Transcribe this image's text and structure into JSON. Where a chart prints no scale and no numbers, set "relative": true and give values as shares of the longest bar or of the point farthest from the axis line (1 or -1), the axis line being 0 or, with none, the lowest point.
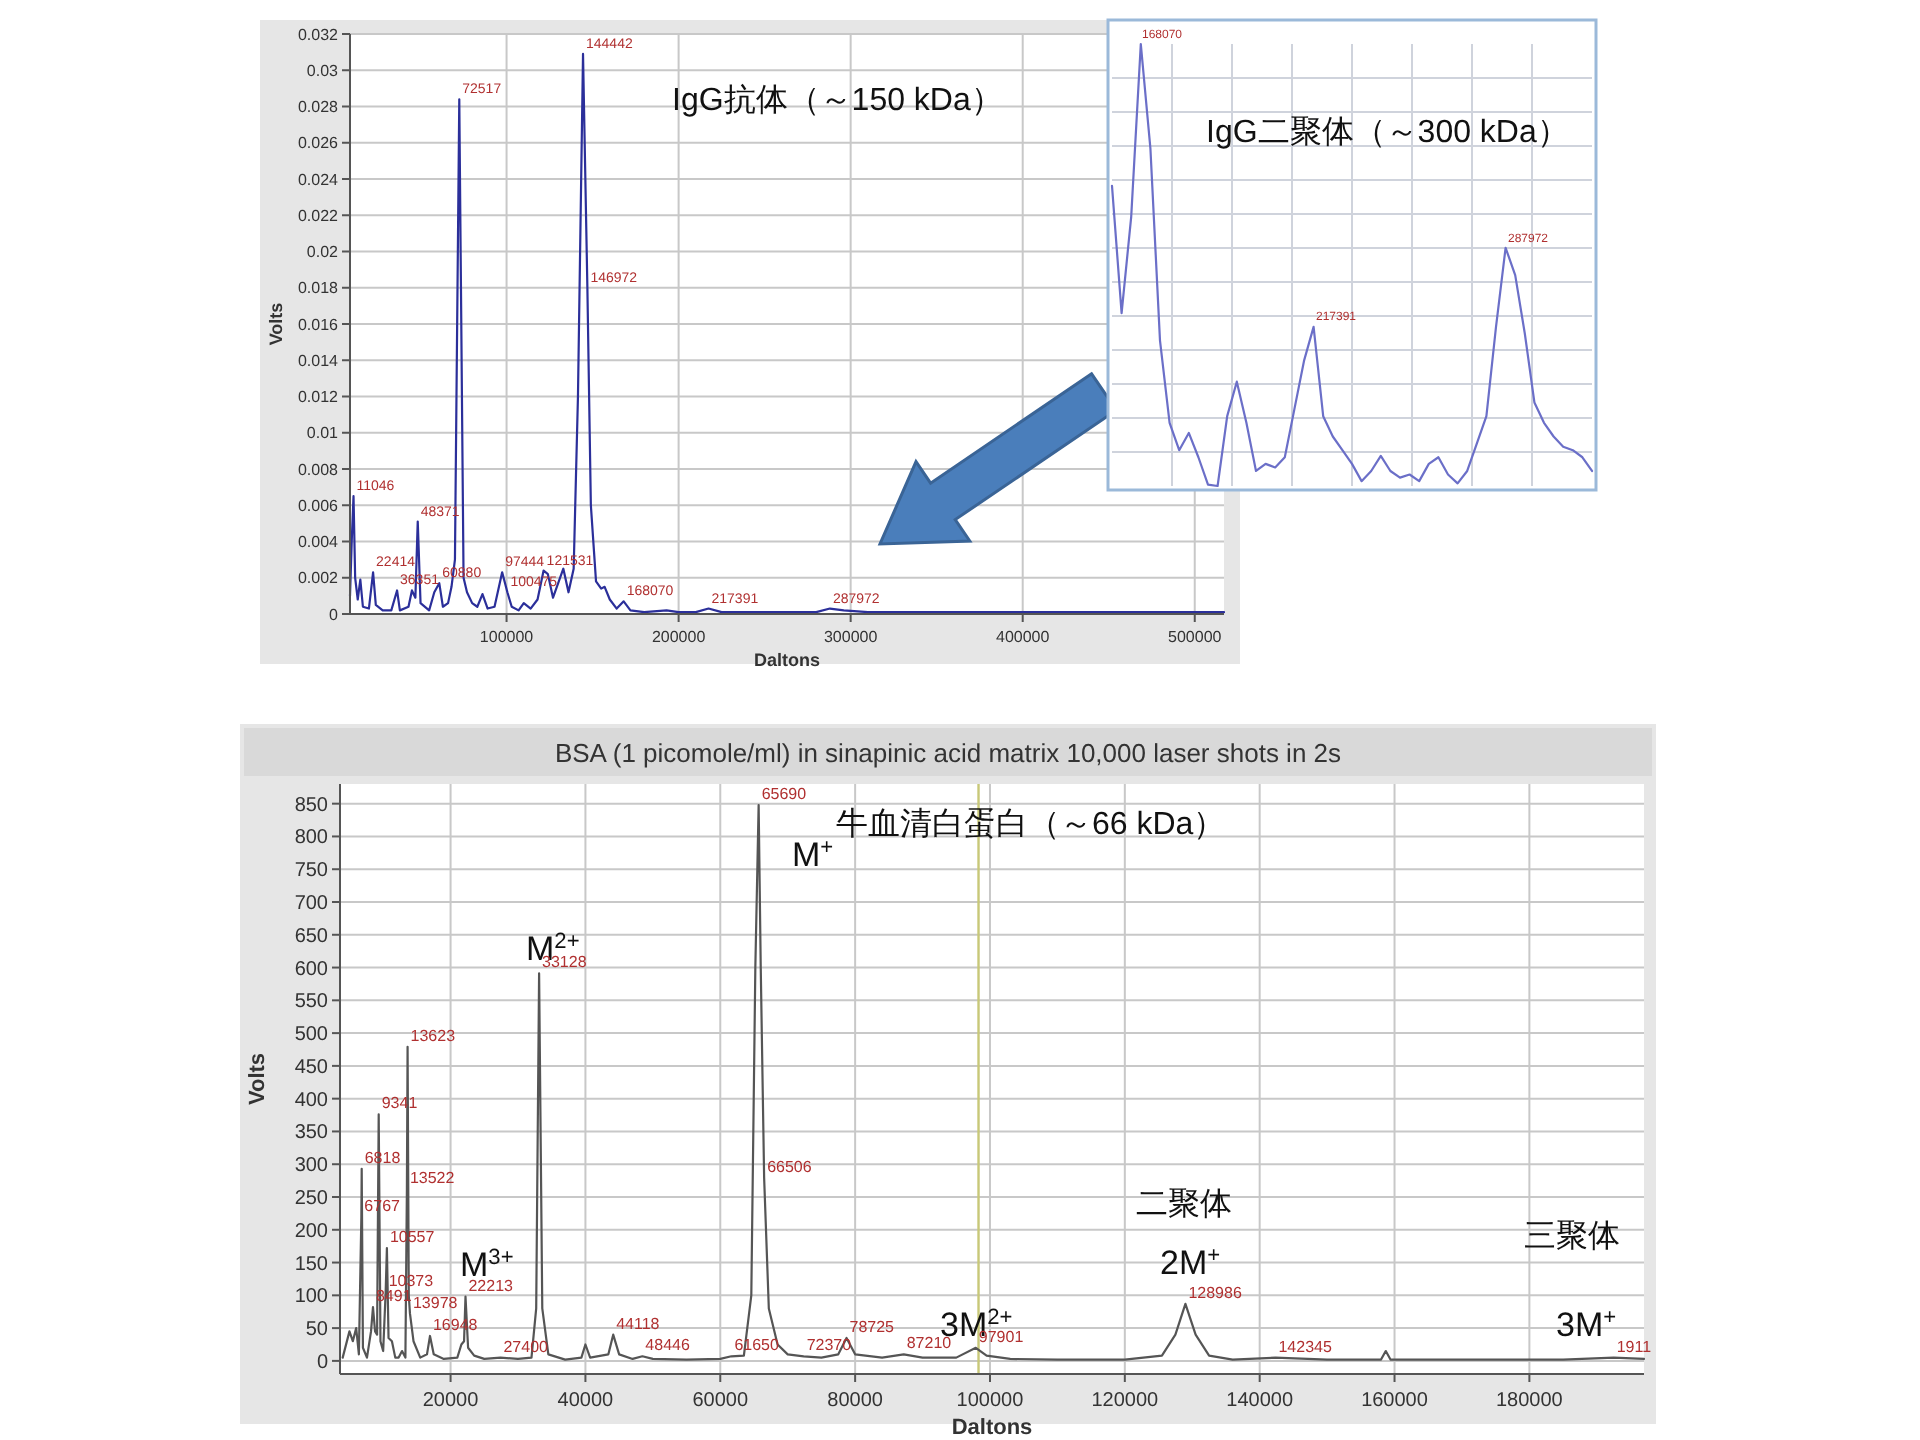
{
  "chart_data": [
    {
      "type": "line",
      "xlabel": "Daltons",
      "ylabel": "Volts",
      "xlim": [
        9000,
        517000
      ],
      "ylim": [
        0,
        0.032
      ],
      "xticks": [
        100000,
        200000,
        300000,
        400000,
        500000
      ],
      "yticks": [
        0,
        0.002,
        0.004,
        0.006,
        0.008,
        0.01,
        0.012,
        0.014,
        0.016,
        0.018,
        0.02,
        0.022,
        0.024,
        0.026,
        0.028,
        0.03,
        0.032
      ],
      "grid": true,
      "annotations": [
        "IgG抗体（～150 kDa）",
        {
          "text": "11046",
          "x": 11046,
          "y": 0.0065
        },
        {
          "text": "22414",
          "x": 22414,
          "y": 0.0023
        },
        {
          "text": "36351",
          "x": 36351,
          "y": 0.0013
        },
        {
          "text": "48371",
          "x": 48371,
          "y": 0.0051
        },
        {
          "text": "60880",
          "x": 60880,
          "y": 0.0017
        },
        {
          "text": "72517",
          "x": 72517,
          "y": 0.0284
        },
        {
          "text": "97444",
          "x": 97444,
          "y": 0.0023
        },
        {
          "text": "100475",
          "x": 100475,
          "y": 0.0012
        },
        {
          "text": "121531",
          "x": 121531,
          "y": 0.0024
        },
        {
          "text": "144442",
          "x": 144442,
          "y": 0.0309
        },
        {
          "text": "146972",
          "x": 146972,
          "y": 0.018
        },
        {
          "text": "168070",
          "x": 168070,
          "y": 0.0007
        },
        {
          "text": "217391",
          "x": 217391,
          "y": 0.0003
        },
        {
          "text": "287972",
          "x": 287972,
          "y": 0.0003
        }
      ],
      "series": [
        {
          "color": "#2b2f9a",
          "x": [
            9000,
            10000,
            11046,
            12000,
            13500,
            15000,
            16500,
            20000,
            22414,
            24000,
            28000,
            33000,
            36351,
            38000,
            43000,
            45000,
            47000,
            48371,
            50000,
            55000,
            58000,
            60880,
            63000,
            66000,
            68000,
            70000,
            72517,
            75000,
            77000,
            80000,
            83000,
            86000,
            89000,
            93000,
            97444,
            100475,
            103000,
            107000,
            110000,
            114000,
            118000,
            121531,
            124000,
            127000,
            130000,
            133000,
            136000,
            139000,
            141500,
            144442,
            146972,
            149000,
            152000,
            155000,
            157000,
            160000,
            164000,
            168070,
            172000,
            180000,
            193000,
            200000,
            210000,
            217391,
            225000,
            242000,
            264000,
            280000,
            287972,
            296000,
            310000,
            350000,
            400000,
            450000,
            517000
          ],
          "values": [
            0.001,
            0.004,
            0.0065,
            0.002,
            0.0008,
            0.0019,
            0.0004,
            0.0003,
            0.0023,
            0.0005,
            0.0002,
            0.0002,
            0.0013,
            0.0002,
            0.0004,
            0.0013,
            0.0009,
            0.0051,
            0.0006,
            0.0002,
            0.0012,
            0.0017,
            0.0004,
            0.0006,
            0.0015,
            0.003,
            0.0284,
            0.002,
            0.0012,
            0.0006,
            0.0004,
            0.0011,
            0.0003,
            0.0004,
            0.0023,
            0.0012,
            0.0004,
            0.0002,
            0.0006,
            0.0003,
            0.0008,
            0.0024,
            0.0022,
            0.0009,
            0.0017,
            0.0025,
            0.0012,
            0.0025,
            0.012,
            0.0309,
            0.018,
            0.006,
            0.0018,
            0.0014,
            0.0015,
            0.0008,
            0.0003,
            0.0007,
            0.0002,
            0.0001,
            0.0002,
            0.0001,
            0.0001,
            0.0003,
            0.0001,
            0.0001,
            0.0001,
            0.0001,
            0.0003,
            0.0002,
            0.0001,
            0.0001,
            0.0001,
            0.0001,
            0.0001
          ]
        }
      ]
    },
    {
      "type": "line",
      "relative": true,
      "grid": true,
      "categories": [
        null,
        null,
        null,
        null,
        null,
        null,
        null,
        null,
        null,
        null,
        null,
        null,
        null,
        null,
        null,
        null,
        null,
        null,
        null,
        null,
        null,
        null,
        null,
        null,
        null,
        null,
        null,
        null,
        null,
        null,
        null,
        null,
        null,
        null,
        null,
        null,
        null,
        null,
        null,
        null,
        null,
        null,
        null,
        null,
        null,
        null,
        null,
        null,
        null,
        null,
        null
      ],
      "annotations": [
        "IgG二聚体（～300 kDa）",
        "168070",
        "217391",
        "287972"
      ],
      "series": [
        {
          "color": "#6b6fc8",
          "values": [
            0.679,
            0.391,
            0.609,
            1,
            0.764,
            0.329,
            0.143,
            0.081,
            0.12,
            0.065,
            0.003,
            0,
            0.158,
            0.236,
            0.143,
            0.034,
            0.05,
            0.042,
            0.065,
            0.174,
            0.283,
            0.36,
            0.158,
            0.112,
            0.081,
            0.05,
            0.011,
            0.034,
            0.068,
            0.034,
            0.019,
            0.026,
            0.011,
            0.05,
            0.065,
            0.026,
            0.006,
            0.034,
            0.096,
            0.158,
            0.36,
            0.539,
            0.477,
            0.345,
            0.189,
            0.143,
            0.112,
            0.089,
            0.081,
            0.065,
            0.034
          ]
        }
      ]
    },
    {
      "type": "line",
      "title": "BSA (1 picomole/ml) in sinapinic acid matrix 10,000 laser shots in 2s",
      "xlabel": "Daltons",
      "ylabel": "Volts",
      "xlim": [
        3600,
        197000
      ],
      "ylim": [
        -20,
        880
      ],
      "xticks": [
        20000,
        40000,
        60000,
        80000,
        100000,
        120000,
        140000,
        160000,
        180000
      ],
      "yticks": [
        0,
        50,
        100,
        150,
        200,
        250,
        300,
        350,
        400,
        450,
        500,
        550,
        600,
        650,
        700,
        750,
        800,
        850
      ],
      "grid": true,
      "ref_lines": [
        {
          "axis": "x",
          "value": 98300,
          "color": "#c8c878"
        }
      ],
      "annotations": [
        "牛血清白蛋白（～66 kDa）",
        "M$^{+}$",
        "M$^{2+}$",
        "M$^{3+}$",
        "3M$^{2+}$",
        "二聚体",
        "2M$^{+}$",
        "三聚体",
        "3M$^{+}$",
        {
          "text": "6767",
          "x": 6767,
          "y": 219
        },
        {
          "text": "6818",
          "x": 6818,
          "y": 293
        },
        {
          "text": "8491",
          "x": 8491,
          "y": 82
        },
        {
          "text": "9341",
          "x": 9341,
          "y": 376
        },
        {
          "text": "10373",
          "x": 10373,
          "y": 105
        },
        {
          "text": "10557",
          "x": 10557,
          "y": 172
        },
        {
          "text": "13522",
          "x": 13522,
          "y": 262
        },
        {
          "text": "13623",
          "x": 13623,
          "y": 479
        },
        {
          "text": "13978",
          "x": 13978,
          "y": 72
        },
        {
          "text": "16948",
          "x": 16948,
          "y": 38
        },
        {
          "text": "22213",
          "x": 22213,
          "y": 98
        },
        {
          "text": "27400",
          "x": 27400,
          "y": 5
        },
        {
          "text": "33128",
          "x": 33128,
          "y": 591
        },
        {
          "text": "44118",
          "x": 44118,
          "y": 40
        },
        {
          "text": "48446",
          "x": 48446,
          "y": 7
        },
        {
          "text": "61650",
          "x": 61650,
          "y": 7
        },
        {
          "text": "65690",
          "x": 65690,
          "y": 848
        },
        {
          "text": "66506",
          "x": 66506,
          "y": 279
        },
        {
          "text": "72370",
          "x": 72370,
          "y": 7
        },
        {
          "text": "78725",
          "x": 78725,
          "y": 35
        },
        {
          "text": "87210",
          "x": 87210,
          "y": 10
        },
        {
          "text": "97901",
          "x": 97901,
          "y": 20
        },
        {
          "text": "128986",
          "x": 128986,
          "y": 87
        },
        {
          "text": "142345",
          "x": 142345,
          "y": 5
        },
        {
          "text": "1911",
          "x": 192500,
          "y": 5
        }
      ],
      "series": [
        {
          "color": "#555555",
          "x": [
            4000,
            5000,
            5500,
            6000,
            6400,
            6767,
            6818,
            7000,
            7600,
            8200,
            8491,
            8800,
            9100,
            9341,
            9600,
            10000,
            10373,
            10557,
            10800,
            11300,
            11800,
            12300,
            12800,
            13300,
            13522,
            13623,
            13800,
            13978,
            14500,
            15500,
            16500,
            16948,
            17500,
            19000,
            21000,
            21600,
            22000,
            22213,
            22600,
            23500,
            25000,
            27400,
            30000,
            32000,
            32700,
            33128,
            33600,
            34500,
            37000,
            39400,
            40000,
            40700,
            43400,
            44118,
            45000,
            47000,
            48446,
            50000,
            55000,
            60000,
            61650,
            63500,
            64600,
            65200,
            65690,
            66000,
            66506,
            67200,
            68500,
            70000,
            72370,
            75000,
            77500,
            78725,
            80000,
            84000,
            87210,
            90000,
            95000,
            97901,
            99500,
            103000,
            110000,
            120000,
            125500,
            127500,
            128986,
            130500,
            132500,
            136000,
            142345,
            150000,
            158000,
            158700,
            159400,
            170000,
            185000,
            192500,
            197000
          ],
          "values": [
            5,
            45,
            30,
            50,
            10,
            219,
            293,
            20,
            5,
            45,
            82,
            45,
            40,
            376,
            30,
            15,
            105,
            172,
            35,
            30,
            5,
            5,
            15,
            5,
            262,
            479,
            100,
            72,
            30,
            5,
            10,
            38,
            10,
            3,
            5,
            25,
            30,
            98,
            20,
            8,
            3,
            5,
            3,
            5,
            80,
            591,
            80,
            10,
            2,
            5,
            25,
            5,
            10,
            40,
            10,
            3,
            7,
            3,
            2,
            3,
            7,
            8,
            100,
            600,
            848,
            600,
            279,
            80,
            25,
            10,
            7,
            5,
            10,
            35,
            10,
            5,
            10,
            5,
            5,
            20,
            8,
            3,
            2,
            2,
            8,
            40,
            87,
            40,
            8,
            2,
            5,
            2,
            2,
            15,
            2,
            2,
            2,
            5,
            3
          ]
        }
      ]
    }
  ]
}
